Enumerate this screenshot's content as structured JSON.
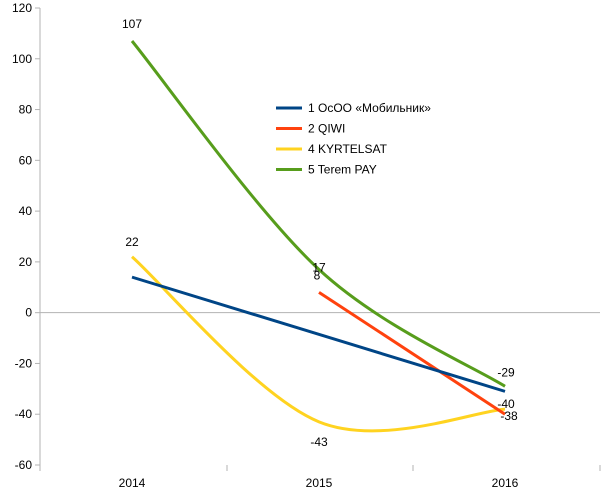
{
  "chart_data": {
    "type": "line",
    "title": "",
    "xlabel": "",
    "ylabel": "",
    "categories": [
      "2014",
      "2015",
      "2016"
    ],
    "ylim": [
      -60,
      120
    ],
    "yticks": [
      120,
      100,
      80,
      60,
      40,
      20,
      0,
      -20,
      -40,
      -60
    ],
    "grid": false,
    "legend_position": "upper-middle-right",
    "series": [
      {
        "name": "1 ОсОО «Мобильник»",
        "color": "#004586",
        "smooth": false,
        "values": [
          14,
          null,
          -31
        ],
        "labels": [
          "",
          "",
          ""
        ]
      },
      {
        "name": "2 QIWI",
        "color": "#ff420e",
        "smooth": false,
        "values": [
          null,
          8,
          -40
        ],
        "labels": [
          "",
          "8",
          "-40"
        ]
      },
      {
        "name": "4  KYRTELSAT",
        "color": "#ffd320",
        "smooth": true,
        "values": [
          22,
          -43,
          -38
        ],
        "labels": [
          "22",
          "-43",
          "-38"
        ]
      },
      {
        "name": "5 Terem PAY",
        "color": "#579d1c",
        "smooth": true,
        "values": [
          107,
          17,
          -29
        ],
        "labels": [
          "107",
          "17",
          "-29"
        ]
      }
    ]
  }
}
